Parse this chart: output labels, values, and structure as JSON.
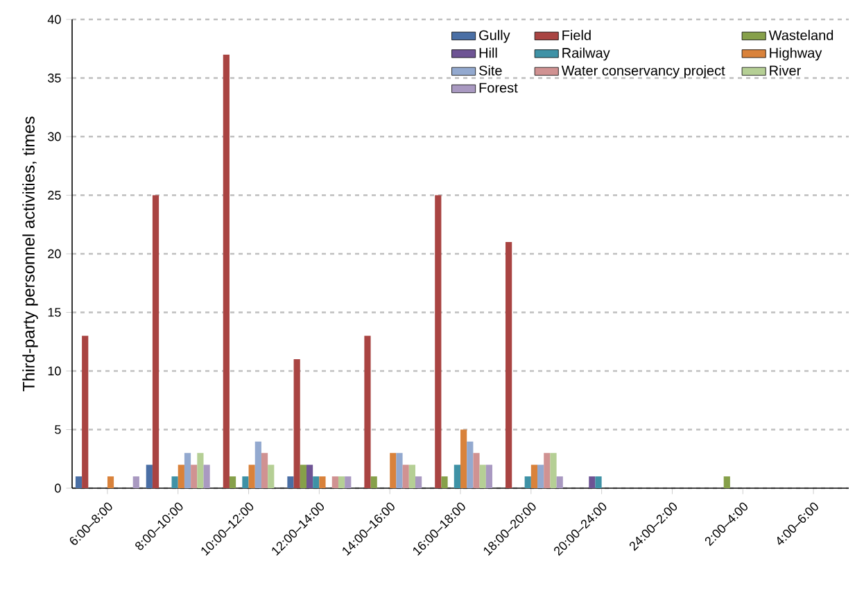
{
  "chart_data": {
    "type": "bar",
    "ylabel": "Third-party personnel activities, times",
    "categories": [
      "6:00–8:00",
      "8:00–10:00",
      "10:00–12:00",
      "12:00–14:00",
      "14:00–16:00",
      "16:00–18:00",
      "18:00–20:00",
      "20:00–24:00",
      "24:00–2:00",
      "2:00–4:00",
      "4:00–6:00"
    ],
    "series": [
      {
        "name": "Gully",
        "color": "#4a6fa5",
        "values": [
          1,
          2,
          0,
          1,
          0,
          0,
          0,
          0,
          0,
          0,
          0
        ]
      },
      {
        "name": "Field",
        "color": "#a94442",
        "values": [
          13,
          25,
          37,
          11,
          13,
          25,
          21,
          0,
          0,
          0,
          0
        ]
      },
      {
        "name": "Wasteland",
        "color": "#86a04a",
        "values": [
          0,
          0,
          1,
          2,
          1,
          1,
          0,
          0,
          0,
          1,
          0
        ]
      },
      {
        "name": "Hill",
        "color": "#6e5494",
        "values": [
          0,
          0,
          0,
          2,
          0,
          0,
          0,
          1,
          0,
          0,
          0
        ]
      },
      {
        "name": "Railway",
        "color": "#3f92a6",
        "values": [
          0,
          1,
          1,
          1,
          0,
          2,
          1,
          1,
          0,
          0,
          0
        ]
      },
      {
        "name": "Highway",
        "color": "#d9823b",
        "values": [
          1,
          2,
          2,
          1,
          3,
          5,
          2,
          0,
          0,
          0,
          0
        ]
      },
      {
        "name": "Site",
        "color": "#93a9cf",
        "values": [
          0,
          3,
          4,
          0,
          3,
          4,
          2,
          0,
          0,
          0,
          0
        ]
      },
      {
        "name": "Water conservancy project",
        "color": "#d09292",
        "values": [
          0,
          2,
          3,
          1,
          2,
          3,
          3,
          0,
          0,
          0,
          0
        ]
      },
      {
        "name": "River",
        "color": "#b5cf95",
        "values": [
          0,
          3,
          2,
          1,
          2,
          2,
          3,
          0,
          0,
          0,
          0
        ]
      },
      {
        "name": "Forest",
        "color": "#a999c1",
        "values": [
          1,
          2,
          0,
          1,
          1,
          2,
          1,
          0,
          0,
          0,
          0
        ]
      }
    ],
    "ylim": [
      0,
      40
    ],
    "yticks": [
      0,
      5,
      10,
      15,
      20,
      25,
      30,
      35,
      40
    ],
    "grid": "y",
    "legend": "top right"
  }
}
